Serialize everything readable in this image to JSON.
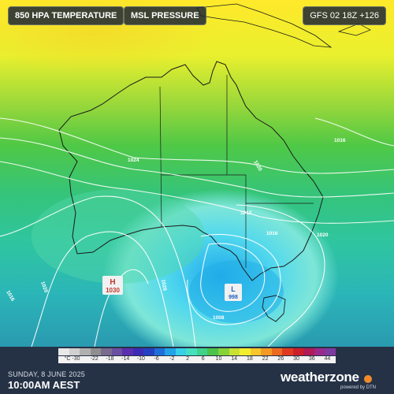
{
  "header": {
    "layer_1": "850 HPA TEMPERATURE",
    "layer_2": "MSL PRESSURE",
    "model_run": "GFS 02 18Z +126"
  },
  "legend": {
    "unit_label": "°C -30",
    "ticks": [
      "-22",
      "-18",
      "-14",
      "-10",
      "-6",
      "-2",
      "2",
      "6",
      "10",
      "14",
      "18",
      "22",
      "26",
      "30",
      "36",
      "44"
    ],
    "colors": [
      "#e8e8e8",
      "#d0d0d0",
      "#b0b0b0",
      "#8f8f8f",
      "#7a6a8e",
      "#6b4fa0",
      "#5a2fb0",
      "#3d2bb5",
      "#2440c2",
      "#1d6ed8",
      "#22a3e8",
      "#36d0e8",
      "#45e0c0",
      "#3fd38a",
      "#4cc24a",
      "#86d23a",
      "#c8e234",
      "#f2ee2e",
      "#f7c62a",
      "#f39a25",
      "#ec6a20",
      "#e03a1e",
      "#cc1f28",
      "#b01a55",
      "#9a2a8a",
      "#7d3aa0"
    ]
  },
  "map": {
    "pressure_labels": [
      {
        "name": "isobar-1024",
        "text": "1024"
      },
      {
        "name": "isobar-1020",
        "text": "1020"
      },
      {
        "name": "isobar-1016-ne",
        "text": "1016"
      },
      {
        "name": "isobar-1012",
        "text": "1012"
      },
      {
        "name": "isobar-1016-se",
        "text": "1016"
      },
      {
        "name": "isobar-1020-se",
        "text": "1020"
      },
      {
        "name": "isobar-1008",
        "text": "1008"
      },
      {
        "name": "isobar-1020-w",
        "text": "1020"
      },
      {
        "name": "isobar-1028",
        "text": "1028"
      },
      {
        "name": "isobar-1016-nw",
        "text": "1016"
      }
    ],
    "high": {
      "letter": "H",
      "value": "1030"
    },
    "low": {
      "letter": "L",
      "value": "998"
    }
  },
  "footer": {
    "date": "SUNDAY, 8 JUNE 2025",
    "time": "10:00AM AEST",
    "brand": "weatherzone",
    "powered_by": "powered by DTN"
  }
}
